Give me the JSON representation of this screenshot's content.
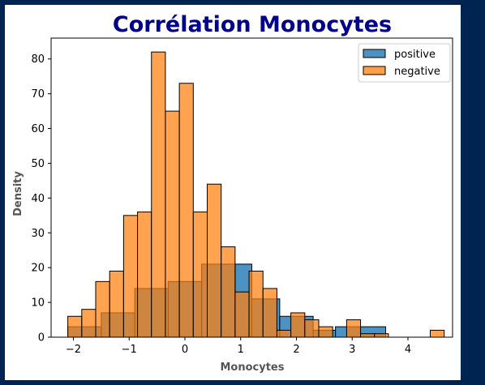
{
  "chart_data": {
    "type": "histogram",
    "title": "Corrélation Monocytes",
    "xlabel": "Monocytes",
    "ylabel": "Density",
    "xlim": [
      -2.4,
      4.8
    ],
    "ylim": [
      0,
      86
    ],
    "xticks": [
      -2,
      -1,
      0,
      1,
      2,
      3,
      4
    ],
    "yticks": [
      0,
      10,
      20,
      30,
      40,
      50,
      60,
      70,
      80
    ],
    "legend_position": "top-right",
    "bin_start": -2.1,
    "bin_width": 0.25,
    "series": [
      {
        "name": "positive",
        "color": "#1f77b4",
        "bins": [
          [
            -2.1,
            -1.5,
            3
          ],
          [
            -1.5,
            -0.9,
            7
          ],
          [
            -0.9,
            -0.3,
            14
          ],
          [
            -0.3,
            0.3,
            16
          ],
          [
            0.3,
            0.9,
            21
          ],
          [
            0.9,
            1.2,
            21
          ],
          [
            1.2,
            1.7,
            11
          ],
          [
            1.7,
            2.3,
            6
          ],
          [
            2.3,
            2.7,
            2
          ],
          [
            2.7,
            3.6,
            3
          ]
        ]
      },
      {
        "name": "negative",
        "color": "#ff7f0e",
        "values": [
          6,
          8,
          16,
          19,
          35,
          36,
          82,
          65,
          73,
          36,
          44,
          26,
          13,
          19,
          14,
          2,
          7,
          5,
          3,
          0,
          5,
          1,
          1,
          0,
          0,
          0,
          2
        ]
      }
    ]
  }
}
